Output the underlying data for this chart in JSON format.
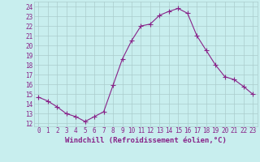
{
  "x": [
    0,
    1,
    2,
    3,
    4,
    5,
    6,
    7,
    8,
    9,
    10,
    11,
    12,
    13,
    14,
    15,
    16,
    17,
    18,
    19,
    20,
    21,
    22,
    23
  ],
  "y": [
    14.7,
    14.3,
    13.7,
    13.0,
    12.7,
    12.2,
    12.7,
    13.2,
    15.9,
    18.6,
    20.5,
    22.0,
    22.2,
    23.1,
    23.5,
    23.8,
    23.3,
    21.0,
    19.5,
    18.0,
    16.8,
    16.5,
    15.8,
    15.0
  ],
  "line_color": "#882288",
  "marker": "+",
  "marker_size": 4,
  "bg_color": "#c8eeee",
  "grid_color": "#aacccc",
  "xlabel": "Windchill (Refroidissement éolien,°C)",
  "ylabel_ticks": [
    12,
    13,
    14,
    15,
    16,
    17,
    18,
    19,
    20,
    21,
    22,
    23,
    24
  ],
  "ylim": [
    11.7,
    24.5
  ],
  "xlim": [
    -0.5,
    23.5
  ],
  "tick_color": "#882288",
  "label_color": "#882288",
  "tick_fontsize": 5.5,
  "xlabel_fontsize": 6.5
}
